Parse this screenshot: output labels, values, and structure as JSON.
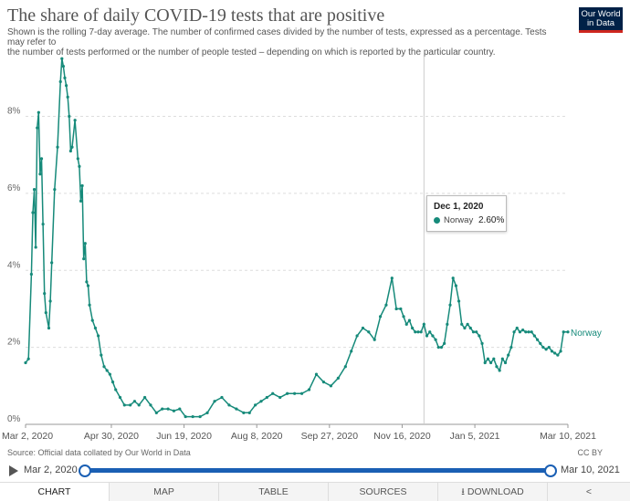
{
  "header": {
    "title": "The share of daily COVID-19 tests that are positive",
    "subtitle_line1": "Shown is the rolling 7-day average. The number of confirmed cases divided by the number of tests, expressed as a percentage. Tests may refer to",
    "subtitle_line2": "the number of tests performed or the number of people tested – depending on which is reported by the particular country.",
    "logo_line1": "Our World",
    "logo_line2": "in Data"
  },
  "colors": {
    "series": "#168a7a",
    "logo_bg": "#002147",
    "logo_accent": "#ce261e",
    "timeline": "#1a5fb4"
  },
  "tooltip": {
    "date": "Dec 1, 2020",
    "series_name": "Norway",
    "value": "2.60%"
  },
  "footer": {
    "source": "Source: Official data collated by Our World in Data",
    "license": "CC BY"
  },
  "timeline": {
    "start": "Mar 2, 2020",
    "end": "Mar 10, 2021"
  },
  "tabs": [
    "CHART",
    "MAP",
    "TABLE",
    "SOURCES",
    "DOWNLOAD"
  ],
  "share_icon": "share-icon",
  "chart_data": {
    "type": "line",
    "title": "The share of daily COVID-19 tests that are positive",
    "ylim": [
      0,
      9.6
    ],
    "y_ticks": [
      "0%",
      "2%",
      "4%",
      "6%",
      "8%"
    ],
    "y_tick_values": [
      0,
      2,
      4,
      6,
      8
    ],
    "x_ticks": [
      "Mar 2, 2020",
      "Apr 30, 2020",
      "Jun 19, 2020",
      "Aug 8, 2020",
      "Sep 27, 2020",
      "Nov 16, 2020",
      "Jan 5, 2021",
      "Mar 10, 2021"
    ],
    "x_tick_days": [
      0,
      59,
      109,
      159,
      209,
      259,
      309,
      373
    ],
    "x_range_days": [
      0,
      373
    ],
    "grid": true,
    "hover_day": 274,
    "series": [
      {
        "name": "Norway",
        "x": [
          0,
          2,
          4,
          5,
          6,
          7,
          8,
          9,
          10,
          11,
          12,
          13,
          14,
          16,
          17,
          18,
          20,
          22,
          24,
          25,
          26,
          27,
          28,
          29,
          30,
          31,
          32,
          34,
          36,
          37,
          38,
          39,
          40,
          41,
          42,
          43,
          44,
          46,
          48,
          50,
          52,
          54,
          56,
          58,
          60,
          62,
          65,
          68,
          72,
          75,
          78,
          82,
          86,
          90,
          94,
          98,
          102,
          106,
          110,
          115,
          120,
          125,
          130,
          135,
          140,
          145,
          150,
          154,
          158,
          162,
          166,
          170,
          175,
          180,
          185,
          190,
          195,
          200,
          205,
          210,
          215,
          220,
          224,
          228,
          232,
          236,
          240,
          244,
          248,
          252,
          255,
          258,
          260,
          262,
          264,
          266,
          268,
          270,
          272,
          274,
          276,
          278,
          280,
          282,
          284,
          286,
          288,
          290,
          292,
          294,
          296,
          298,
          300,
          302,
          304,
          306,
          308,
          310,
          312,
          314,
          316,
          318,
          320,
          322,
          324,
          326,
          328,
          330,
          332,
          334,
          336,
          338,
          340,
          342,
          344,
          346,
          348,
          350,
          352,
          354,
          356,
          358,
          360,
          362,
          364,
          366,
          368,
          370,
          373
        ],
        "values": [
          1.6,
          1.7,
          3.9,
          5.5,
          6.1,
          4.6,
          7.7,
          8.1,
          6.5,
          6.9,
          5.2,
          3.4,
          2.9,
          2.5,
          3.2,
          4.2,
          6.1,
          7.2,
          8.9,
          9.5,
          9.3,
          9.0,
          8.8,
          8.5,
          8.0,
          7.1,
          7.2,
          7.9,
          6.9,
          6.7,
          5.8,
          6.2,
          4.3,
          4.7,
          3.7,
          3.6,
          3.1,
          2.7,
          2.5,
          2.3,
          1.8,
          1.5,
          1.4,
          1.3,
          1.1,
          0.9,
          0.7,
          0.5,
          0.5,
          0.6,
          0.5,
          0.7,
          0.5,
          0.3,
          0.4,
          0.4,
          0.35,
          0.4,
          0.2,
          0.2,
          0.2,
          0.3,
          0.6,
          0.7,
          0.5,
          0.4,
          0.3,
          0.3,
          0.5,
          0.6,
          0.7,
          0.8,
          0.7,
          0.8,
          0.8,
          0.8,
          0.9,
          1.3,
          1.1,
          1.0,
          1.2,
          1.5,
          1.9,
          2.3,
          2.5,
          2.4,
          2.2,
          2.8,
          3.1,
          3.8,
          3.0,
          3.0,
          2.8,
          2.6,
          2.7,
          2.5,
          2.4,
          2.4,
          2.4,
          2.6,
          2.3,
          2.4,
          2.3,
          2.2,
          2.0,
          2.0,
          2.1,
          2.6,
          3.1,
          3.8,
          3.6,
          3.2,
          2.6,
          2.5,
          2.6,
          2.5,
          2.4,
          2.4,
          2.3,
          2.1,
          1.6,
          1.7,
          1.6,
          1.7,
          1.5,
          1.4,
          1.7,
          1.6,
          1.8,
          2.0,
          2.4,
          2.5,
          2.4,
          2.45,
          2.4,
          2.4,
          2.4,
          2.3,
          2.2,
          2.1,
          2.0,
          1.95,
          2.0,
          1.9,
          1.85,
          1.8,
          1.9,
          2.4,
          2.4
        ]
      }
    ]
  }
}
